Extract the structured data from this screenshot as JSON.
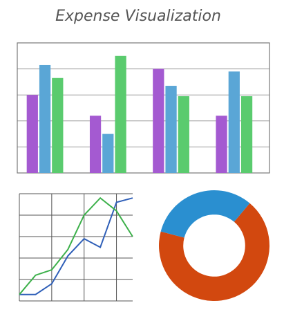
{
  "title": "Expense Visualization",
  "chart_data": [
    {
      "type": "bar",
      "categories": [
        null,
        null,
        null,
        null
      ],
      "series": [
        {
          "color": "#a45ad1",
          "values": [
            3.0,
            2.2,
            4.0,
            2.2
          ]
        },
        {
          "color": "#5aa6d6",
          "values": [
            4.15,
            1.5,
            3.35,
            3.9
          ]
        },
        {
          "color": "#5acb6e",
          "values": [
            3.65,
            4.5,
            2.95,
            2.95
          ]
        }
      ],
      "ylim": [
        0,
        5
      ],
      "yticks": [
        0,
        1,
        2,
        3,
        4,
        5
      ],
      "grid": true
    },
    {
      "type": "line",
      "x": [
        0,
        1,
        2,
        3,
        4,
        5,
        6,
        7
      ],
      "series": [
        {
          "color": "#2f5fb8",
          "values": [
            0.3,
            0.3,
            0.8,
            2.1,
            2.9,
            2.5,
            4.6,
            4.8
          ]
        },
        {
          "color": "#3cb04a",
          "values": [
            0.3,
            1.2,
            1.45,
            2.4,
            4.0,
            4.8,
            4.2,
            3.0
          ]
        }
      ],
      "xlim": [
        0,
        7
      ],
      "xticks": [
        0,
        2,
        4,
        6
      ],
      "ylim": [
        0,
        5
      ],
      "yticks": [
        0,
        1,
        2,
        3,
        4,
        5
      ],
      "grid": true
    },
    {
      "type": "pie",
      "values": [
        68,
        32
      ],
      "colors": [
        "#d2480f",
        "#2a8fd0"
      ],
      "startangle": 40,
      "hole": 0.56
    }
  ]
}
